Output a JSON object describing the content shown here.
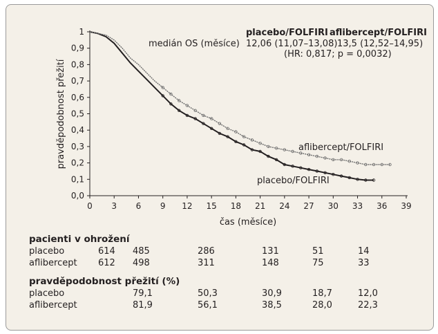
{
  "chart_data": {
    "type": "line",
    "xlabel": "čas (měsíce)",
    "ylabel": "pravděpodobnost přežití",
    "xlim": [
      0,
      39
    ],
    "ylim": [
      0,
      1
    ],
    "x_ticks": [
      "0",
      "3",
      "6",
      "9",
      "12",
      "15",
      "18",
      "21",
      "24",
      "27",
      "30",
      "33",
      "36",
      "39"
    ],
    "y_ticks": [
      "0,0",
      "0,1",
      "0,2",
      "0,3",
      "0,4",
      "0,5",
      "0,6",
      "0,7",
      "0,8",
      "0,9",
      "1"
    ],
    "grid": false,
    "series": [
      {
        "name": "placebo/FOLFIRI",
        "color": "#231f20",
        "x": [
          0,
          1,
          2,
          3,
          4,
          5,
          6,
          7,
          8,
          9,
          10,
          11,
          12,
          13,
          14,
          15,
          16,
          17,
          18,
          19,
          20,
          21,
          22,
          23,
          24,
          25,
          26,
          27,
          28,
          29,
          30,
          31,
          32,
          33,
          34,
          35
        ],
        "y": [
          1.0,
          0.99,
          0.97,
          0.93,
          0.87,
          0.81,
          0.76,
          0.71,
          0.66,
          0.61,
          0.56,
          0.52,
          0.49,
          0.47,
          0.44,
          0.41,
          0.38,
          0.36,
          0.33,
          0.31,
          0.28,
          0.27,
          0.24,
          0.22,
          0.19,
          0.18,
          0.17,
          0.16,
          0.15,
          0.14,
          0.13,
          0.12,
          0.11,
          0.1,
          0.095,
          0.095
        ]
      },
      {
        "name": "aflibercept/FOLFIRI",
        "color": "#6e6e6e",
        "x": [
          0,
          1,
          2,
          3,
          4,
          5,
          6,
          7,
          8,
          9,
          10,
          11,
          12,
          13,
          14,
          15,
          16,
          17,
          18,
          19,
          20,
          21,
          22,
          23,
          24,
          25,
          26,
          27,
          28,
          29,
          30,
          31,
          32,
          33,
          34,
          35,
          36,
          37
        ],
        "y": [
          1.0,
          0.99,
          0.98,
          0.95,
          0.9,
          0.84,
          0.8,
          0.75,
          0.7,
          0.66,
          0.62,
          0.58,
          0.55,
          0.52,
          0.49,
          0.47,
          0.44,
          0.41,
          0.39,
          0.36,
          0.34,
          0.32,
          0.3,
          0.29,
          0.28,
          0.27,
          0.26,
          0.25,
          0.24,
          0.23,
          0.22,
          0.22,
          0.21,
          0.2,
          0.19,
          0.19,
          0.19,
          0.19
        ]
      }
    ],
    "curve_labels": [
      "aflibercept/FOLFIRI",
      "placebo/FOLFIRI"
    ],
    "annotation": {
      "col1_header": "placebo/FOLFIRI",
      "col2_header": "aflibercept/FOLFIRI",
      "row_label": "medián OS (měsíce)",
      "col1_value": "12,06 (11,07–13,08)",
      "col2_value": "13,5 (12,52–14,95)",
      "hr_text": "(HR: 0,817; p = 0,0032)"
    }
  },
  "risk_table": {
    "title": "pacienti v ohrožení",
    "rows": [
      {
        "label": "placebo",
        "values": [
          "614",
          "485",
          "286",
          "131",
          "51",
          "14"
        ]
      },
      {
        "label": "aflibercept",
        "values": [
          "612",
          "498",
          "311",
          "148",
          "75",
          "33"
        ]
      }
    ]
  },
  "survival_table": {
    "title": "pravděpodobnost přežití (%)",
    "rows": [
      {
        "label": "placebo",
        "values": [
          "79,1",
          "50,3",
          "30,9",
          "18,7",
          "12,0"
        ]
      },
      {
        "label": "aflibercept",
        "values": [
          "81,9",
          "56,1",
          "38,5",
          "28,0",
          "22,3"
        ]
      }
    ]
  }
}
